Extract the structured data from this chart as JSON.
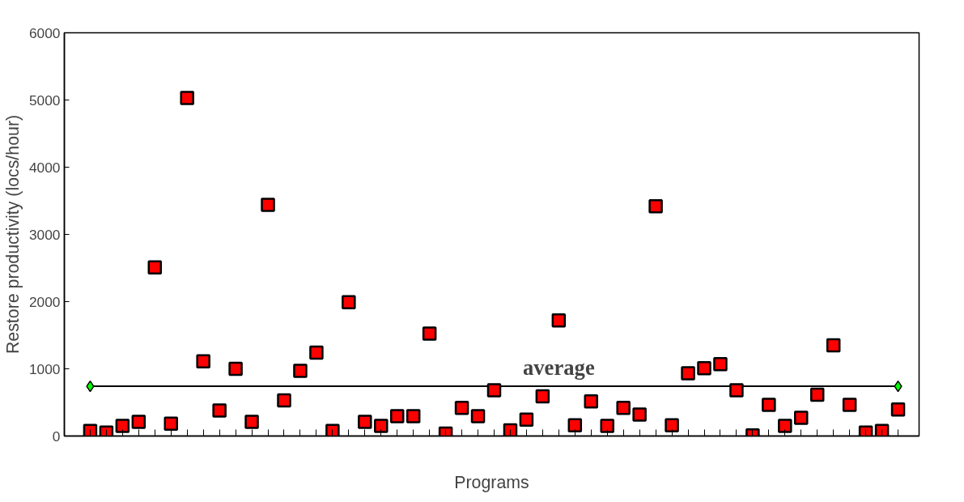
{
  "chart_data": {
    "type": "scatter",
    "xlabel": "Programs",
    "ylabel": "Restore productivity (locs/hour)",
    "categories": [
      null,
      null,
      null,
      null,
      null,
      null,
      null,
      null,
      null,
      null,
      null,
      null,
      null,
      null,
      null,
      null,
      null,
      null,
      null,
      null,
      null,
      null,
      null,
      null,
      null,
      null,
      null,
      null,
      null,
      null,
      null,
      null,
      null,
      null,
      null,
      null,
      null,
      null,
      null,
      null,
      null,
      null,
      null,
      null,
      null,
      null,
      null,
      null,
      null,
      null,
      null
    ],
    "series": [
      {
        "color": "#ff0000",
        "values": [
          75,
          50,
          150,
          210,
          2510,
          185,
          5030,
          1110,
          380,
          1000,
          210,
          3440,
          530,
          970,
          1240,
          75,
          1990,
          210,
          150,
          295,
          295,
          1525,
          35,
          420,
          295,
          680,
          85,
          245,
          590,
          1720,
          160,
          515,
          150,
          420,
          320,
          3420,
          160,
          935,
          1010,
          1070,
          680,
          10,
          465,
          150,
          270,
          615,
          1350,
          465,
          50,
          75,
          395
        ]
      },
      {
        "color": "#00ff00",
        "marker": "diamond",
        "values": [
          740,
          null,
          null,
          null,
          null,
          null,
          null,
          null,
          null,
          null,
          null,
          null,
          null,
          null,
          null,
          null,
          null,
          null,
          null,
          null,
          null,
          null,
          null,
          null,
          null,
          null,
          null,
          null,
          null,
          null,
          null,
          null,
          null,
          null,
          null,
          null,
          null,
          null,
          null,
          null,
          null,
          null,
          null,
          null,
          null,
          null,
          null,
          null,
          null,
          null,
          740
        ]
      }
    ],
    "marker": "square",
    "ylim": [
      0,
      6000
    ],
    "yticks": [
      0,
      1000,
      2000,
      3000,
      4000,
      5000,
      6000
    ],
    "grid": false,
    "ref_lines": [
      {
        "axis": "y",
        "value": 740,
        "label": "average",
        "color": "#000000",
        "line_style": "solid"
      }
    ]
  }
}
